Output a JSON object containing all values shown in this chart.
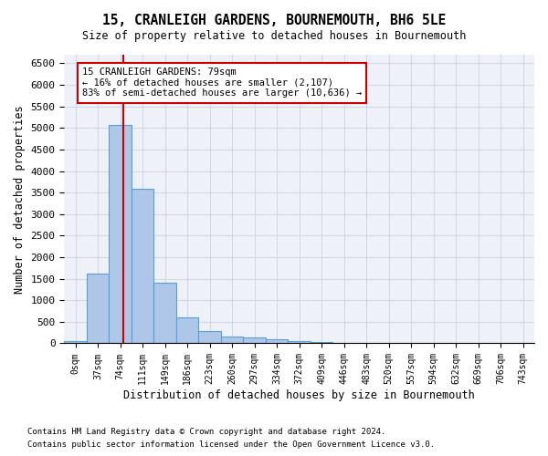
{
  "title": "15, CRANLEIGH GARDENS, BOURNEMOUTH, BH6 5LE",
  "subtitle": "Size of property relative to detached houses in Bournemouth",
  "xlabel": "Distribution of detached houses by size in Bournemouth",
  "ylabel": "Number of detached properties",
  "footnote1": "Contains HM Land Registry data © Crown copyright and database right 2024.",
  "footnote2": "Contains public sector information licensed under the Open Government Licence v3.0.",
  "annotation_line1": "15 CRANLEIGH GARDENS: 79sqm",
  "annotation_line2": "← 16% of detached houses are smaller (2,107)",
  "annotation_line3": "83% of semi-detached houses are larger (10,636) →",
  "bar_labels": [
    "0sqm",
    "37sqm",
    "74sqm",
    "111sqm",
    "149sqm",
    "186sqm",
    "223sqm",
    "260sqm",
    "297sqm",
    "334sqm",
    "372sqm",
    "409sqm",
    "446sqm",
    "483sqm",
    "520sqm",
    "557sqm",
    "594sqm",
    "632sqm",
    "669sqm",
    "706sqm",
    "743sqm"
  ],
  "bar_values": [
    50,
    1620,
    5080,
    3580,
    1400,
    610,
    290,
    150,
    130,
    90,
    50,
    30,
    10,
    5,
    5,
    5,
    5,
    5,
    5,
    5,
    0
  ],
  "bar_color": "#aec6e8",
  "bar_edge_color": "#5a9fd4",
  "grid_color": "#d0d8e8",
  "bg_color": "#eef2f8",
  "red_color": "#cc0000",
  "ylim": [
    0,
    6700
  ],
  "yticks": [
    0,
    500,
    1000,
    1500,
    2000,
    2500,
    3000,
    3500,
    4000,
    4500,
    5000,
    5500,
    6000,
    6500
  ]
}
